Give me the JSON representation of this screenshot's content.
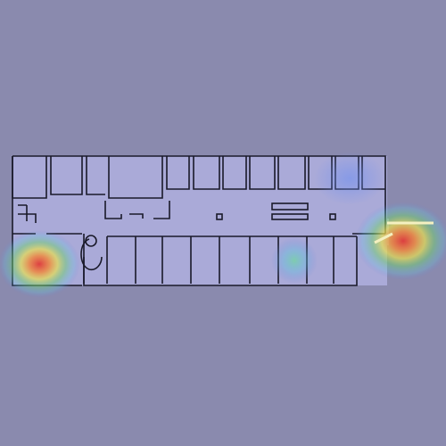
{
  "diagram": {
    "type": "floor-plan-heatmap",
    "background_color": "#8a8aae",
    "floor_fill_color": "#aaaad8",
    "wall_color": "#1a1a2a",
    "heatmap_colormap": [
      "blue",
      "cyan",
      "green",
      "yellow",
      "red"
    ],
    "hotspots": [
      {
        "name": "west-wing-exit",
        "intensity": 1.0
      },
      {
        "name": "east-wing-entrance",
        "intensity": 0.95
      },
      {
        "name": "south-corridor-mid",
        "intensity": 0.35
      },
      {
        "name": "north-east-rooms",
        "intensity": 0.25
      }
    ]
  }
}
